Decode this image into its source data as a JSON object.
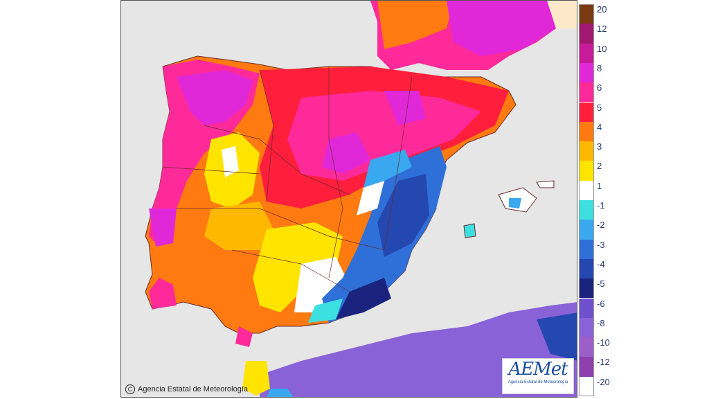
{
  "map": {
    "copyright_symbol": "C",
    "copyright_text": "Agencia Estatal de Meteorología",
    "logo_word": "AEMet",
    "logo_subtitle": "Agencia Estatal de Meteorología"
  },
  "legend": {
    "items": [
      {
        "label": "20",
        "color": "#7a3a12"
      },
      {
        "label": "12",
        "color": "#a01870"
      },
      {
        "label": "10",
        "color": "#c81a9a"
      },
      {
        "label": "8",
        "color": "#e028d8"
      },
      {
        "label": "6",
        "color": "#ff2a9a"
      },
      {
        "label": "5",
        "color": "#ff1e3c"
      },
      {
        "label": "4",
        "color": "#ff7a10"
      },
      {
        "label": "3",
        "color": "#ffb800"
      },
      {
        "label": "2",
        "color": "#ffe400"
      },
      {
        "label": "1",
        "color": "#ffffff"
      },
      {
        "label": "-1",
        "color": "#3de0e0"
      },
      {
        "label": "-2",
        "color": "#3aa8ef"
      },
      {
        "label": "-3",
        "color": "#2f6fd8"
      },
      {
        "label": "-4",
        "color": "#2547b0"
      },
      {
        "label": "-5",
        "color": "#1a237e"
      },
      {
        "label": "-6",
        "color": "#6e50cc"
      },
      {
        "label": "-8",
        "color": "#8a62d8"
      },
      {
        "label": "-10",
        "color": "#9c5ec8"
      },
      {
        "label": "-12",
        "color": "#8e3fae"
      },
      {
        "label": "-20",
        "color": "#ffffff"
      }
    ]
  }
}
